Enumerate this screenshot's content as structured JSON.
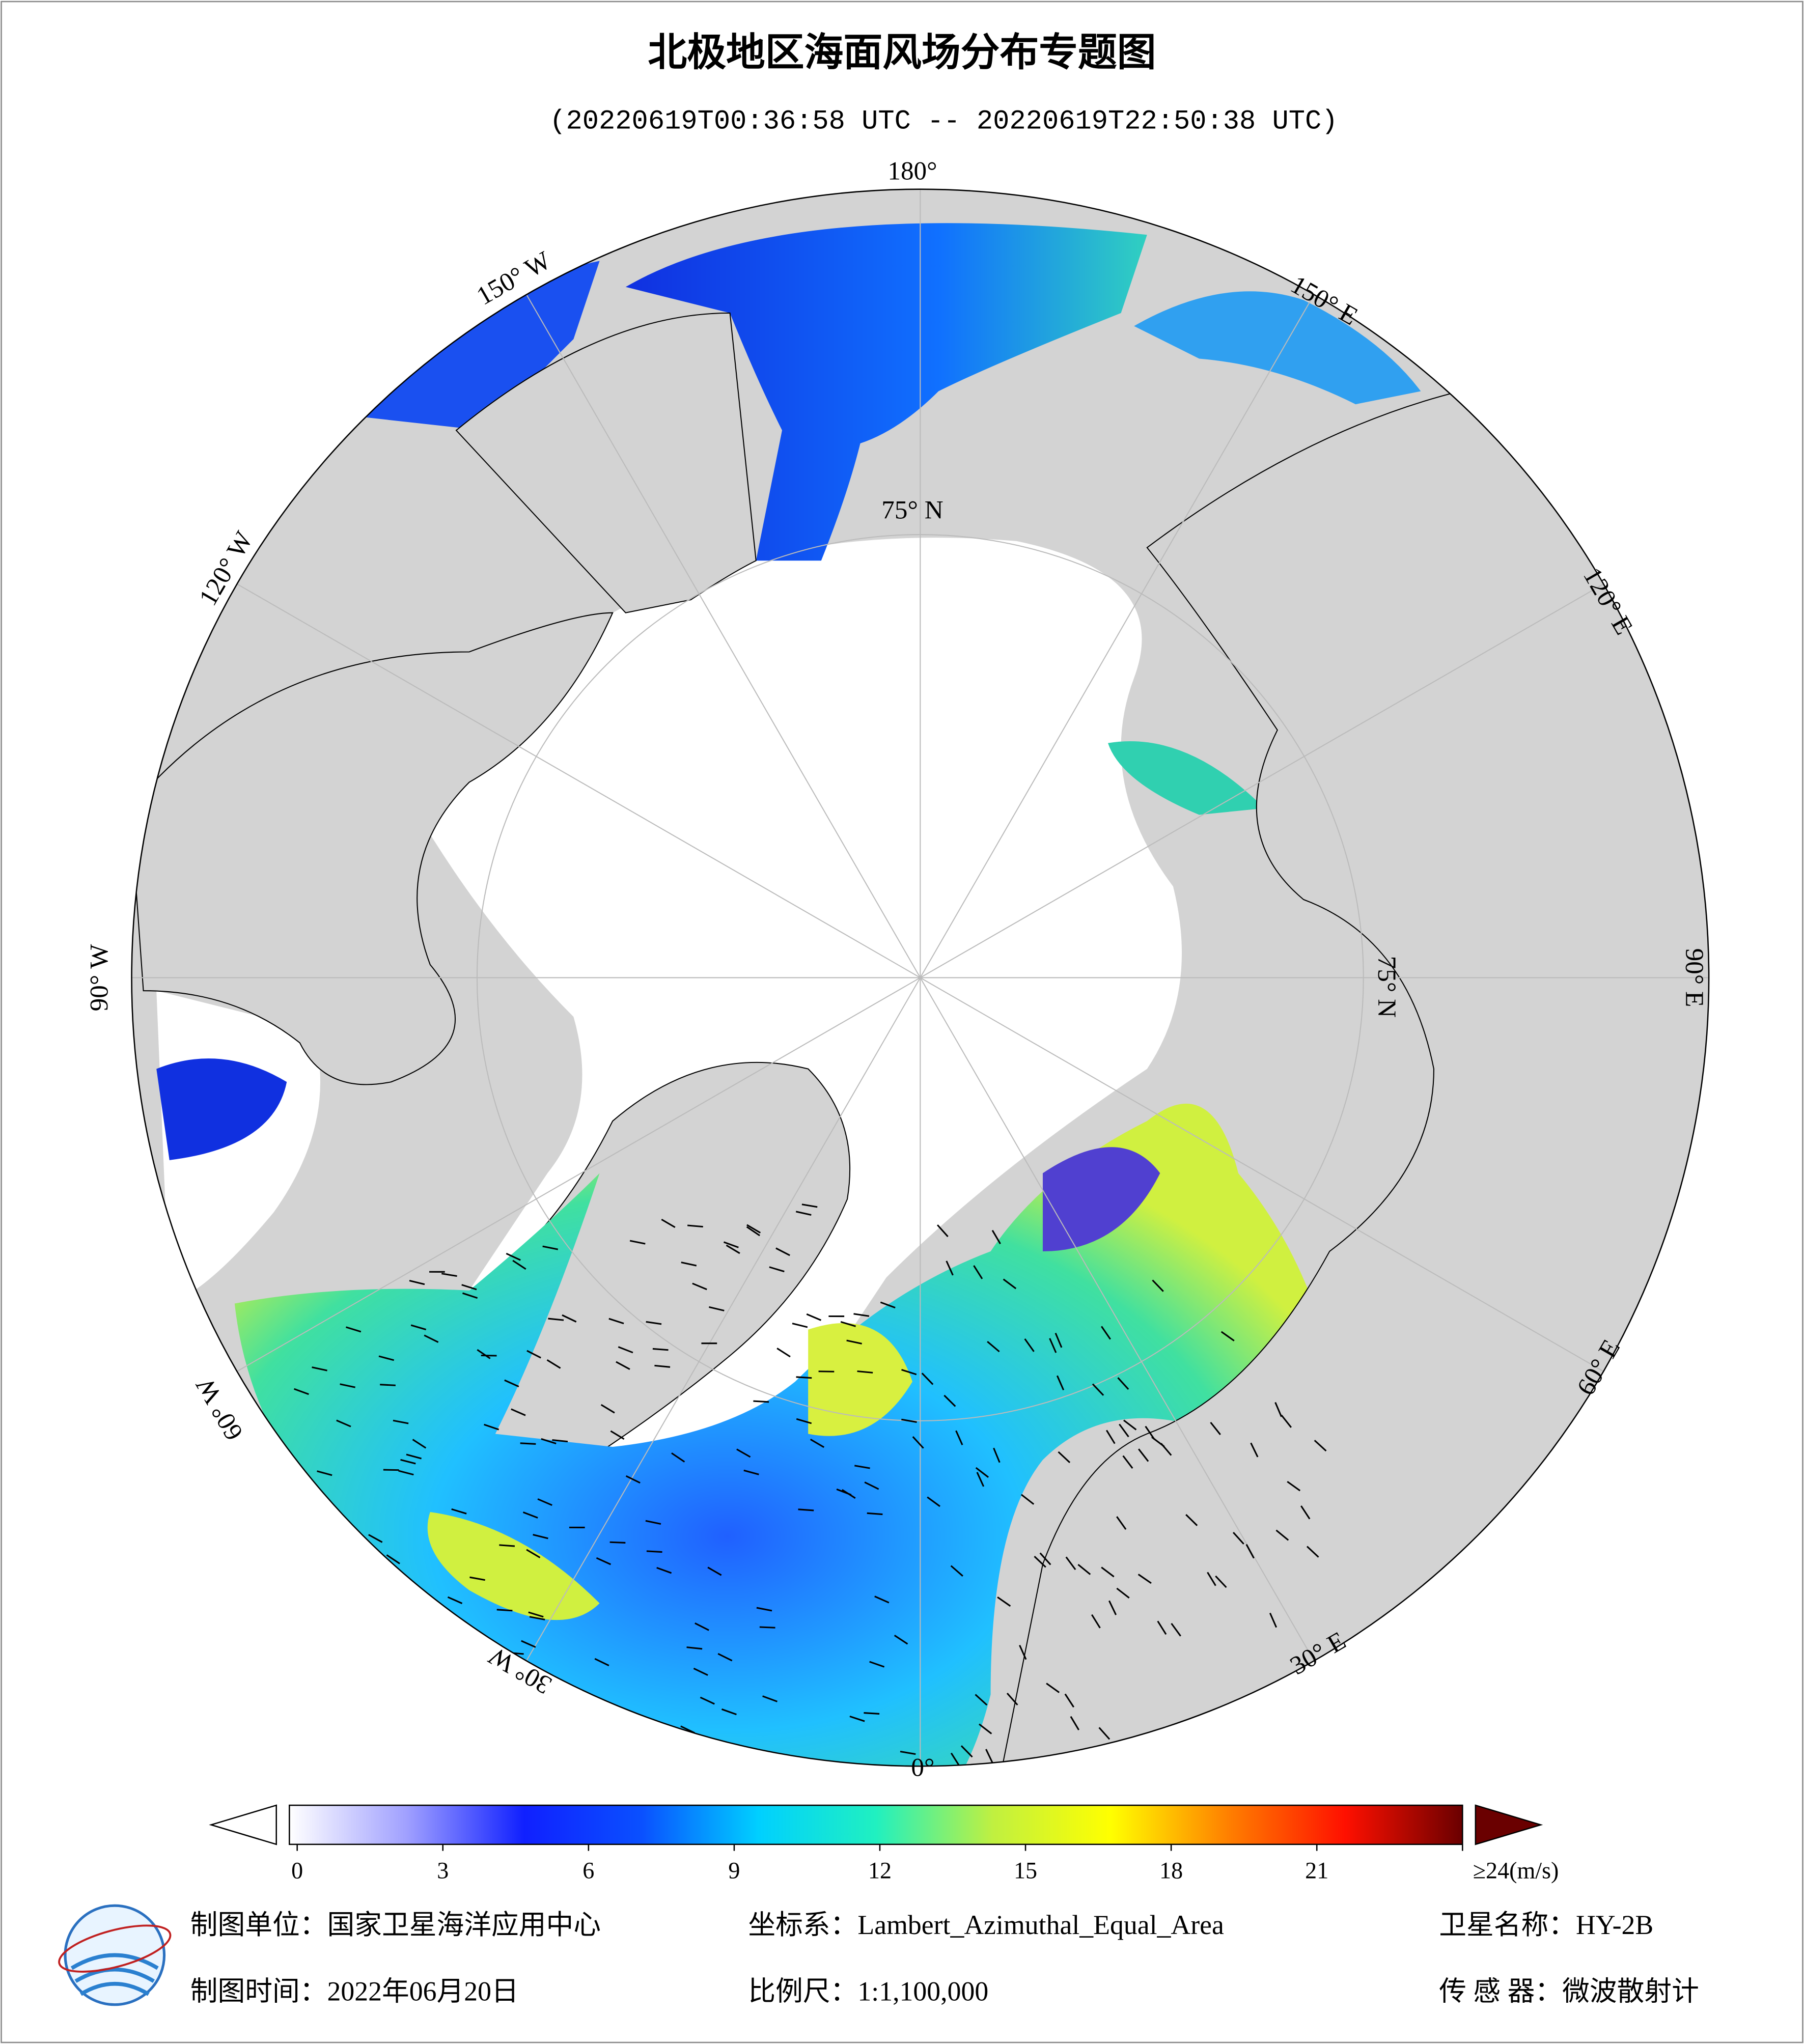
{
  "header": {
    "title": "北极地区海面风场分布专题图",
    "subtitle": "(20220619T00:36:58 UTC -- 20220619T22:50:38 UTC)"
  },
  "map": {
    "longitude_labels": [
      "180°",
      "150° W",
      "120° W",
      "90° W",
      "60° W",
      "30° W",
      "0°",
      "30° E",
      "60° E",
      "90° E",
      "120° E",
      "150° E"
    ],
    "latitude_labels": [
      "75° N",
      "75° N"
    ]
  },
  "colorbar": {
    "lim": [
      0,
      24
    ],
    "ticks": [
      0,
      3,
      6,
      9,
      12,
      15,
      18,
      21,
      {
        "value": 24,
        "label": "≥24(m/s)"
      }
    ],
    "colors": [
      "#ffffff",
      "#a0a0ff",
      "#1020ff",
      "#0a50ff",
      "#00d0ff",
      "#20f0c0",
      "#c0f040",
      "#ffff00",
      "#ff8000",
      "#ff1000",
      "#6a0000"
    ]
  },
  "footer": {
    "unit": "制图单位：国家卫星海洋应用中心",
    "crs": "坐标系：Lambert_Azimuthal_Equal_Area",
    "satellite": "卫星名称：HY-2B",
    "date": "制图时间：2022年06月20日",
    "scale": "比例尺：1:1,100,000",
    "sensor": "传 感 器：微波散射计"
  }
}
